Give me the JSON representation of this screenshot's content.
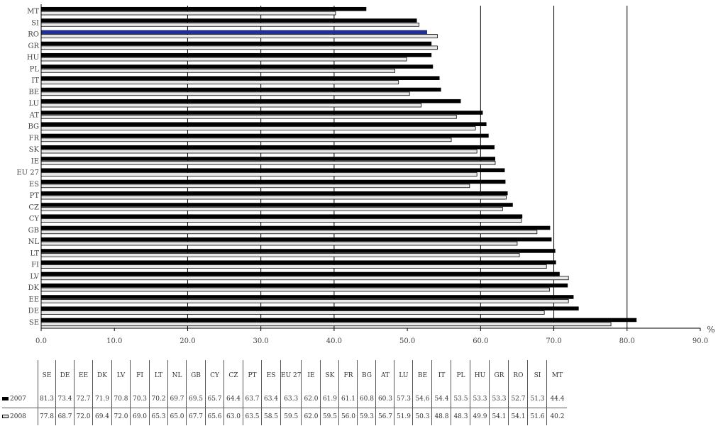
{
  "chart_data": {
    "type": "bar",
    "orientation": "horizontal",
    "categories": [
      "MT",
      "SI",
      "RO",
      "GR",
      "HU",
      "PL",
      "IT",
      "BE",
      "LU",
      "AT",
      "BG",
      "FR",
      "SK",
      "IE",
      "EU 27",
      "ES",
      "PT",
      "CZ",
      "CY",
      "GB",
      "NL",
      "LT",
      "FI",
      "LV",
      "DK",
      "EE",
      "DE",
      "SE"
    ],
    "series": [
      {
        "name": "2007",
        "values": [
          44.4,
          51.3,
          52.7,
          53.3,
          53.3,
          53.5,
          54.4,
          54.6,
          57.3,
          60.3,
          60.8,
          61.1,
          61.9,
          62.0,
          63.3,
          63.4,
          63.7,
          64.4,
          65.7,
          69.5,
          69.7,
          70.2,
          70.3,
          70.8,
          71.9,
          72.7,
          73.4,
          81.3
        ]
      },
      {
        "name": "2008",
        "values": [
          40.2,
          51.6,
          54.1,
          54.1,
          49.9,
          48.3,
          48.8,
          50.3,
          51.9,
          56.7,
          59.3,
          56.0,
          59.5,
          62.0,
          59.5,
          58.5,
          63.5,
          63.0,
          65.6,
          67.7,
          65.0,
          65.3,
          69.0,
          72.0,
          69.4,
          72.0,
          68.7,
          77.8
        ]
      }
    ],
    "highlight_category": "RO",
    "highlight_color": "#1f2f9a",
    "bar_color_2007": "#000000",
    "bar_color_2008": "#e8e8e8",
    "xlim": [
      0,
      90
    ],
    "xticks": [
      "0.0",
      "10.0",
      "20.0",
      "30.0",
      "40.0",
      "50.0",
      "60.0",
      "70.0",
      "80.0",
      "90.0"
    ],
    "gridlines_x": [
      20,
      30,
      40,
      60,
      70,
      80
    ],
    "unit_label": "%",
    "grid": true,
    "table": {
      "columns": [
        "SE",
        "DE",
        "EE",
        "DK",
        "LV",
        "FI",
        "LT",
        "NL",
        "GB",
        "CY",
        "CZ",
        "PT",
        "ES",
        "EU 27",
        "IE",
        "SK",
        "FR",
        "BG",
        "AT",
        "LU",
        "BE",
        "IT",
        "PL",
        "HU",
        "GR",
        "RO",
        "SI",
        "MT"
      ],
      "rows": [
        {
          "label": "2007",
          "values": [
            "81.3",
            "73.4",
            "72.7",
            "71.9",
            "70.8",
            "70.3",
            "70.2",
            "69.7",
            "69.5",
            "65.7",
            "64.4",
            "63.7",
            "63.4",
            "63.3",
            "62.0",
            "61.9",
            "61.1",
            "60.8",
            "60.3",
            "57.3",
            "54.6",
            "54.4",
            "53.5",
            "53.3",
            "53.3",
            "52.7",
            "51.3",
            "44.4"
          ]
        },
        {
          "label": "2008",
          "values": [
            "77.8",
            "68.7",
            "72.0",
            "69.4",
            "72.0",
            "69.0",
            "65.3",
            "65.0",
            "67.7",
            "65.6",
            "63.0",
            "63.5",
            "58.5",
            "59.5",
            "62.0",
            "59.5",
            "56.0",
            "59.3",
            "56.7",
            "51.9",
            "50.3",
            "48.8",
            "48.3",
            "49.9",
            "54.1",
            "54.1",
            "51.6",
            "40.2"
          ]
        }
      ]
    }
  }
}
